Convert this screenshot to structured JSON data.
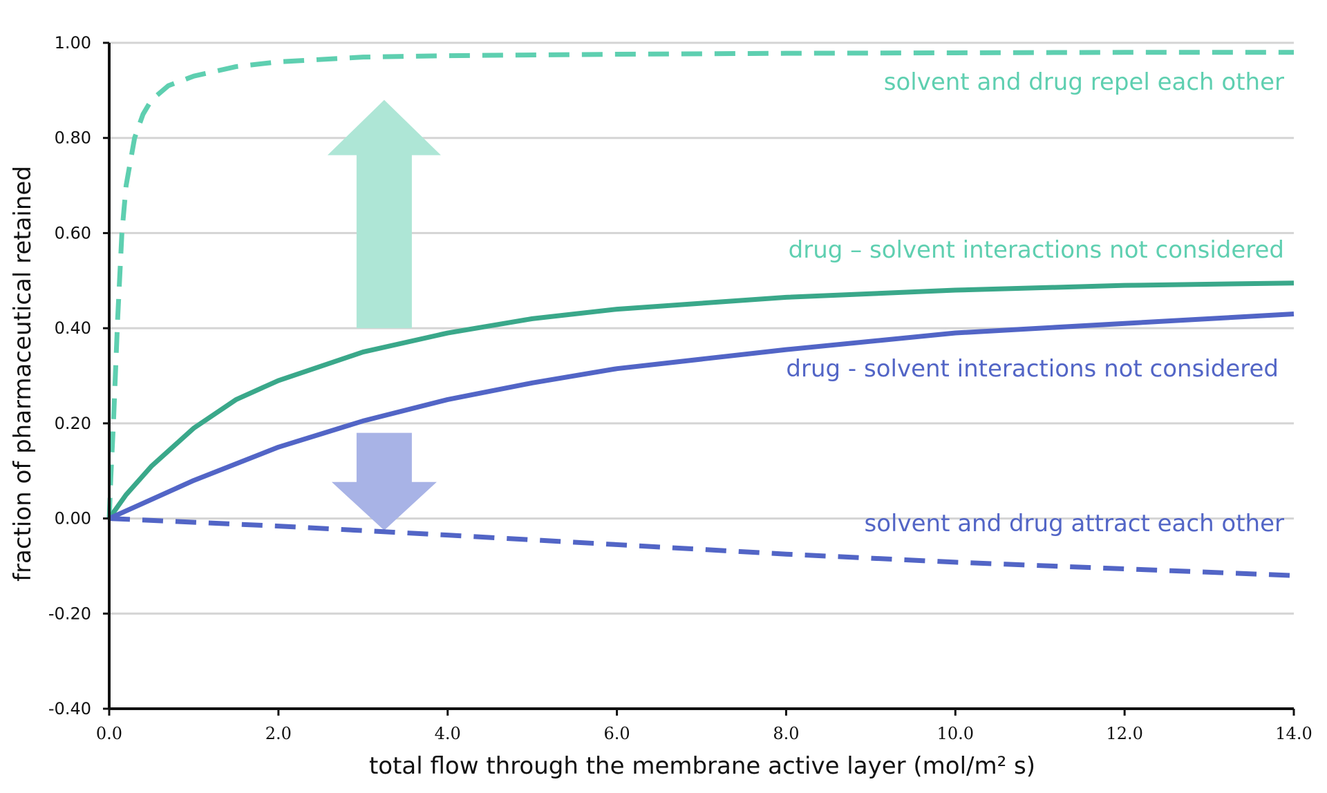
{
  "chart_data": {
    "type": "line",
    "xlabel": "total flow through the membrane active layer (mol/m² s)",
    "ylabel": "fraction of pharmaceutical retained",
    "xlim": [
      0,
      14
    ],
    "ylim": [
      -0.4,
      1.0
    ],
    "x_ticks": [
      "0.0",
      "2.0",
      "4.0",
      "6.0",
      "8.0",
      "10.0",
      "12.0",
      "14.0"
    ],
    "y_ticks": [
      "-0.40",
      "-0.20",
      "0.00",
      "0.20",
      "0.40",
      "0.60",
      "0.80",
      "1.00"
    ],
    "grid": true,
    "series": [
      {
        "name": "solvent and drug repel each other",
        "color": "#5ecfb0",
        "style": "dashed",
        "x": [
          0,
          0.02,
          0.05,
          0.1,
          0.15,
          0.2,
          0.3,
          0.4,
          0.5,
          0.7,
          1.0,
          1.5,
          2.0,
          3.0,
          4.0,
          6.0,
          8.0,
          10.0,
          12.0,
          14.0
        ],
        "y": [
          0.0,
          0.09,
          0.2,
          0.42,
          0.6,
          0.7,
          0.8,
          0.85,
          0.88,
          0.91,
          0.93,
          0.95,
          0.96,
          0.97,
          0.973,
          0.976,
          0.978,
          0.979,
          0.98,
          0.98
        ]
      },
      {
        "name": "drug – solvent interactions not considered",
        "color": "#3aa88a",
        "style": "solid",
        "x": [
          0,
          0.2,
          0.5,
          1.0,
          1.5,
          2.0,
          3.0,
          4.0,
          5.0,
          6.0,
          8.0,
          10.0,
          12.0,
          14.0
        ],
        "y": [
          0.0,
          0.05,
          0.11,
          0.19,
          0.25,
          0.29,
          0.35,
          0.39,
          0.42,
          0.44,
          0.465,
          0.48,
          0.49,
          0.495
        ]
      },
      {
        "name": "drug - solvent interactions not considered",
        "color": "#5265c6",
        "style": "solid",
        "x": [
          0,
          0.5,
          1.0,
          2.0,
          3.0,
          4.0,
          5.0,
          6.0,
          8.0,
          10.0,
          12.0,
          14.0
        ],
        "y": [
          0.0,
          0.04,
          0.08,
          0.15,
          0.205,
          0.25,
          0.285,
          0.315,
          0.355,
          0.39,
          0.41,
          0.43
        ]
      },
      {
        "name": "solvent and drug attract each other",
        "color": "#5265c6",
        "style": "dashed",
        "x": [
          0,
          2.0,
          4.0,
          6.0,
          8.0,
          10.0,
          12.0,
          14.0
        ],
        "y": [
          0.0,
          -0.016,
          -0.035,
          -0.055,
          -0.075,
          -0.092,
          -0.106,
          -0.12
        ]
      }
    ],
    "annotations": [
      {
        "type": "arrow",
        "direction": "up",
        "color": "#aee6d6",
        "x": 3.25,
        "y_from": 0.4,
        "y_to": 0.88
      },
      {
        "type": "arrow",
        "direction": "down",
        "color": "#a8b3e6",
        "x": 3.25,
        "y_from": 0.18,
        "y_to": -0.025
      }
    ]
  }
}
